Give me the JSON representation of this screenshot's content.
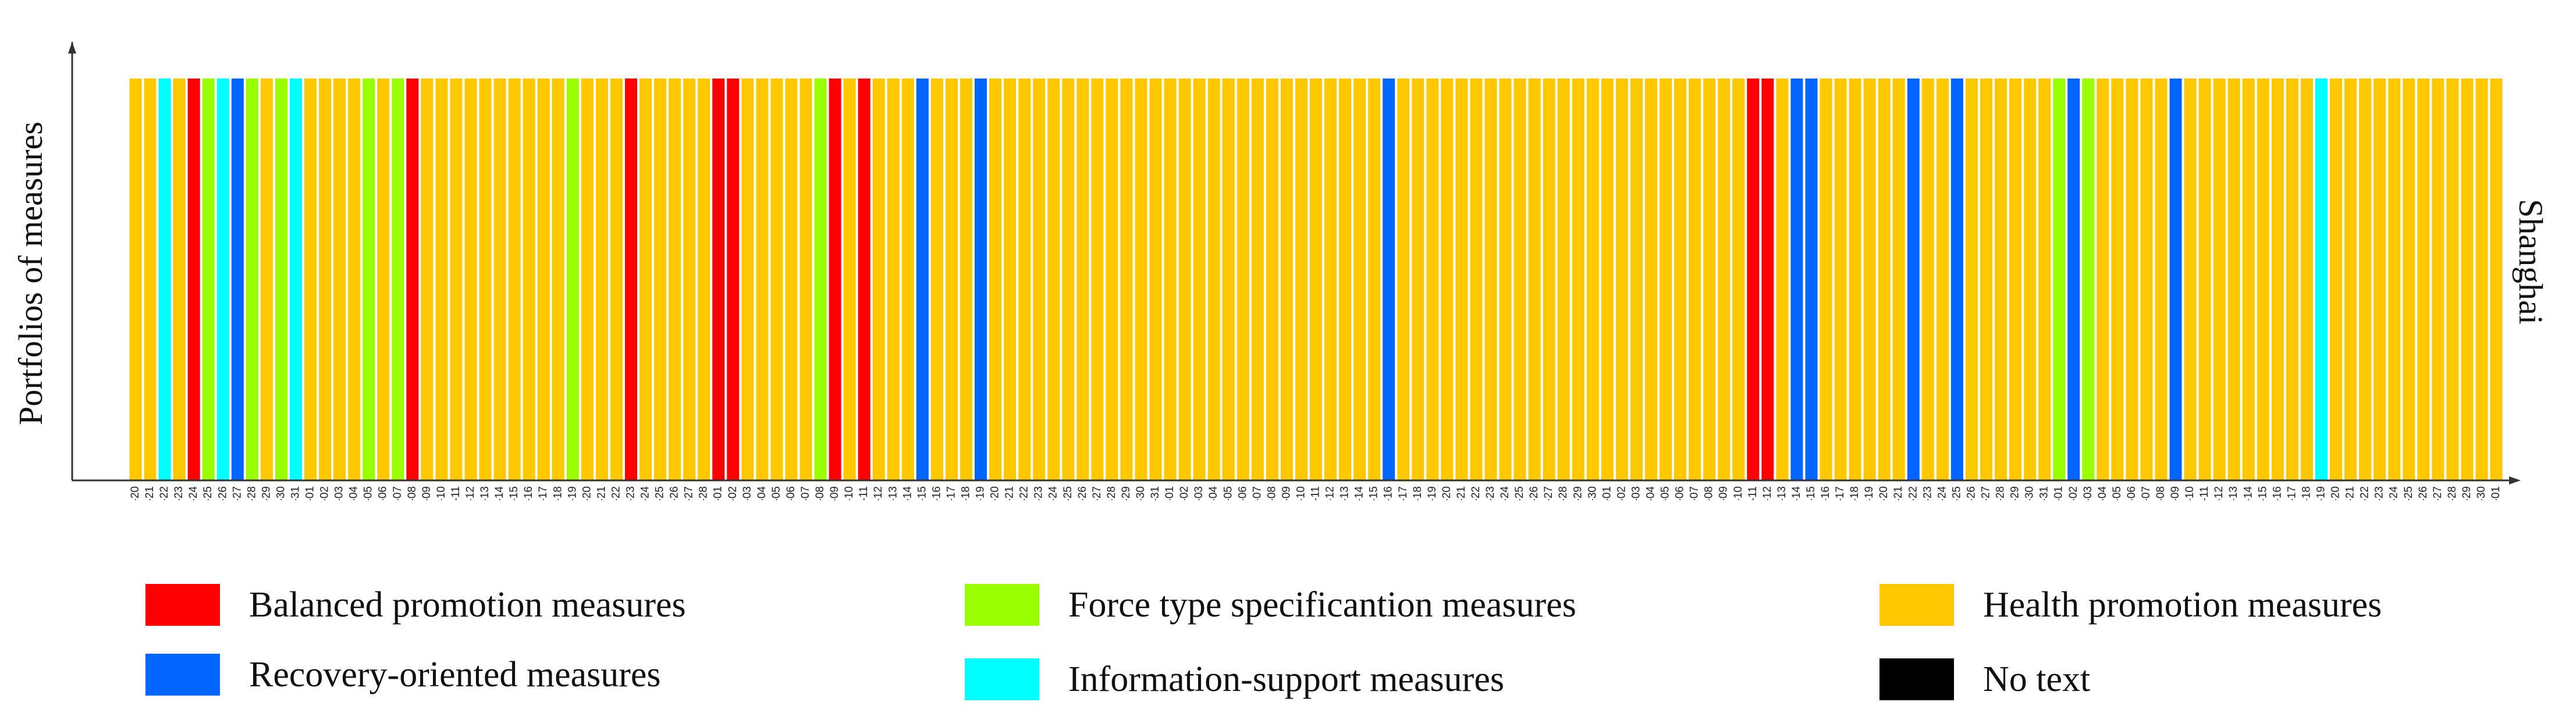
{
  "chart_data": {
    "type": "bar",
    "title": "",
    "ylabel": "Portfolios of measures",
    "right_label": "Shanghai",
    "start_date": "2022-01-20",
    "categories": [
      "01-20",
      "01-21",
      "01-22",
      "01-23",
      "01-24",
      "01-25",
      "01-26",
      "01-27",
      "01-28",
      "01-29",
      "01-30",
      "01-31",
      "02-01",
      "02-02",
      "02-03",
      "02-04",
      "02-05",
      "02-06",
      "02-07",
      "02-08",
      "02-09",
      "02-10",
      "02-11",
      "02-12",
      "02-13",
      "02-14",
      "02-15",
      "02-16",
      "02-17",
      "02-18",
      "02-19",
      "02-20",
      "02-21",
      "02-22",
      "02-23",
      "02-24",
      "02-25",
      "02-26",
      "02-27",
      "02-28",
      "03-01",
      "03-02",
      "03-03",
      "03-04",
      "03-05",
      "03-06",
      "03-07",
      "03-08",
      "03-09",
      "03-10",
      "03-11",
      "03-12",
      "03-13",
      "03-14",
      "03-15",
      "03-16",
      "03-17",
      "03-18",
      "03-19",
      "03-20",
      "03-21",
      "03-22",
      "03-23",
      "03-24",
      "03-25",
      "03-26",
      "03-27",
      "03-28",
      "03-29",
      "03-30",
      "03-31",
      "04-01",
      "04-02",
      "04-03",
      "04-04",
      "04-05",
      "04-06",
      "04-07",
      "04-08",
      "04-09",
      "04-10",
      "04-11",
      "04-12",
      "04-13",
      "04-14",
      "04-15",
      "04-16",
      "04-17",
      "04-18",
      "04-19",
      "04-20",
      "04-21",
      "04-22",
      "04-23",
      "04-24",
      "04-25",
      "04-26",
      "04-27",
      "04-28",
      "04-29",
      "04-30",
      "05-01",
      "05-02",
      "05-03",
      "05-04",
      "05-05",
      "05-06",
      "05-07",
      "05-08",
      "05-09",
      "05-10",
      "05-11",
      "05-12",
      "05-13",
      "05-14",
      "05-15",
      "05-16",
      "05-17",
      "05-18",
      "05-19",
      "05-20",
      "05-21",
      "05-22",
      "05-23",
      "05-24",
      "05-25",
      "05-26",
      "05-27",
      "05-28",
      "05-29",
      "05-30",
      "05-31",
      "06-01",
      "06-02",
      "06-03",
      "06-04",
      "06-05",
      "06-06",
      "06-07",
      "06-08",
      "06-09",
      "06-10",
      "06-11",
      "06-12",
      "06-13",
      "06-14",
      "06-15",
      "06-16",
      "06-17",
      "06-18",
      "06-19",
      "06-20",
      "06-21",
      "06-22",
      "06-23",
      "06-24",
      "06-25",
      "06-26",
      "06-27",
      "06-28",
      "06-29",
      "06-30",
      "07-01"
    ],
    "default_measure": "health",
    "daily_measures": {
      "01-22": "info",
      "01-24": "balanced",
      "01-25": "force",
      "01-26": "info",
      "01-27": "recovery",
      "01-28": "force",
      "01-30": "force",
      "01-31": "info",
      "02-05": "force",
      "02-07": "force",
      "02-08": "balanced",
      "02-19": "force",
      "02-23": "balanced",
      "03-01": "balanced",
      "03-02": "balanced",
      "03-08": "force",
      "03-09": "balanced",
      "03-11": "balanced",
      "03-15": "recovery",
      "03-19": "recovery",
      "04-16": "recovery",
      "05-11": "balanced",
      "05-12": "balanced",
      "05-14": "recovery",
      "05-15": "recovery",
      "05-22": "recovery",
      "05-25": "recovery",
      "06-01": "force",
      "06-02": "recovery",
      "06-03": "force",
      "06-09": "recovery",
      "06-19": "info"
    },
    "legend": [
      {
        "key": "balanced",
        "label": "Balanced promotion measures",
        "color": "#FF0000"
      },
      {
        "key": "force",
        "label": "Force type specificantion measures",
        "color": "#99FF00"
      },
      {
        "key": "health",
        "label": "Health promotion measures",
        "color": "#FFC800"
      },
      {
        "key": "recovery",
        "label": "Recovery-oriented measures",
        "color": "#0066FF"
      },
      {
        "key": "info",
        "label": "Information-support measures",
        "color": "#00FFFF"
      },
      {
        "key": "notext",
        "label": "No text",
        "color": "#000000"
      }
    ],
    "grid": false,
    "legend_position": "bottom"
  }
}
